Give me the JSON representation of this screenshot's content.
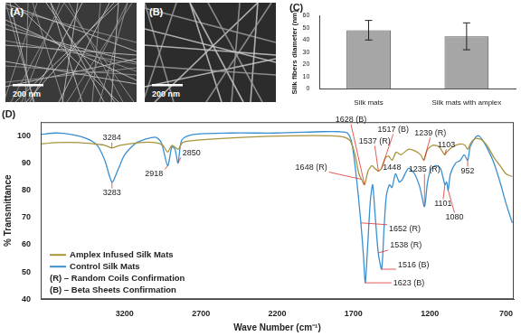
{
  "panels": [
    {
      "label": "(A)",
      "scale_bar": "200 nm"
    },
    {
      "label": "(B)",
      "scale_bar": "200 nm"
    }
  ],
  "chart_data": [
    {
      "type": "bar",
      "title": "(C)",
      "y_label": "Silk fibers diameter (nm)",
      "categories": [
        "Silk mats",
        "Silk mats with amplex"
      ],
      "values": [
        48,
        43
      ],
      "errors": [
        8,
        11
      ],
      "color": "#a6a6a6",
      "ylim": [
        0,
        60
      ],
      "yticks": [
        0,
        10,
        20,
        30,
        40,
        50,
        60
      ],
      "grid": false
    },
    {
      "type": "line",
      "title": "(D)",
      "x_label": "Wave Number (cm⁻¹)",
      "y_label": "% Transmittance",
      "xlim": [
        3750,
        650
      ],
      "xticks": [
        3200,
        2700,
        2200,
        1700,
        1200,
        700
      ],
      "ylim": [
        40,
        105
      ],
      "yticks": [
        40,
        50,
        60,
        70,
        80,
        90,
        100
      ],
      "grid": false,
      "legend": "lower-left",
      "notes": [
        "(R) – Random Coils Confirmation",
        "(B) – Beta Sheets Confirmation"
      ],
      "series": [
        {
          "name": "Amplex Infused Silk Mats",
          "color": "#a8943c",
          "x": [
            3750,
            3650,
            3500,
            3400,
            3330,
            3284,
            3230,
            3100,
            3000,
            2950,
            2918,
            2890,
            2850,
            2820,
            2700,
            2400,
            2100,
            1850,
            1760,
            1720,
            1690,
            1665,
            1648,
            1628,
            1605,
            1580,
            1560,
            1537,
            1517,
            1490,
            1470,
            1448,
            1420,
            1390,
            1340,
            1300,
            1260,
            1239,
            1215,
            1180,
            1140,
            1103,
            1090,
            1080,
            1050,
            1000,
            970,
            952,
            930,
            900,
            860,
            820,
            780,
            740,
            700,
            660
          ],
          "values": [
            97,
            97.5,
            97.5,
            97,
            96.5,
            95.5,
            96.5,
            97.5,
            97.5,
            96.5,
            94,
            96.5,
            95,
            97.5,
            98.5,
            99.5,
            100,
            100,
            99.5,
            98,
            93,
            86,
            84,
            82,
            87,
            89,
            88,
            87,
            88,
            92,
            92.5,
            91,
            94,
            93,
            95,
            94.5,
            93,
            91,
            95,
            96.5,
            96,
            93,
            94,
            94.5,
            96,
            97,
            96.5,
            95,
            97.5,
            99,
            98.5,
            96,
            92,
            89,
            86,
            85
          ]
        },
        {
          "name": "Control Silk Mats",
          "color": "#3a8fd0",
          "x": [
            3750,
            3650,
            3550,
            3450,
            3380,
            3330,
            3283,
            3240,
            3200,
            3120,
            3000,
            2960,
            2918,
            2890,
            2870,
            2850,
            2825,
            2750,
            2500,
            2200,
            1900,
            1800,
            1740,
            1710,
            1680,
            1652,
            1635,
            1623,
            1610,
            1590,
            1575,
            1560,
            1538,
            1516,
            1500,
            1485,
            1465,
            1448,
            1425,
            1400,
            1380,
            1340,
            1300,
            1265,
            1235,
            1215,
            1190,
            1160,
            1130,
            1101,
            1090,
            1080,
            1065,
            1030,
            1000,
            975,
            952,
            935,
            900,
            880,
            850,
            820,
            780,
            740,
            700,
            660
          ],
          "values": [
            100.5,
            101,
            100.5,
            99,
            96.5,
            91,
            83,
            88,
            93,
            97.5,
            99.5,
            97.5,
            89,
            96,
            95,
            90,
            98.5,
            100.5,
            101,
            101,
            101.5,
            101.5,
            101,
            97,
            84,
            68,
            56,
            46,
            57,
            76,
            82,
            72,
            57,
            51,
            66,
            78,
            82,
            81,
            86,
            83,
            84,
            88,
            86,
            81,
            74,
            83,
            88,
            89,
            88,
            82,
            83,
            80,
            86,
            90,
            91,
            93,
            91,
            96,
            99.5,
            100,
            98,
            95,
            90,
            83,
            75,
            68
          ]
        }
      ],
      "annotations": [
        {
          "text": "3284",
          "x": 3284,
          "y": 95.5
        },
        {
          "text": "3283",
          "x": 3283,
          "y": 83
        },
        {
          "text": "2918",
          "x": 2918,
          "y": 89
        },
        {
          "text": "2850",
          "x": 2850,
          "y": 90
        },
        {
          "text": "1628 (B)",
          "x": 1628,
          "y": 82
        },
        {
          "text": "1648 (R)",
          "x": 1648,
          "y": 84
        },
        {
          "text": "1537 (R)",
          "x": 1537,
          "y": 87
        },
        {
          "text": "1517 (B)",
          "x": 1517,
          "y": 88
        },
        {
          "text": "1239 (R)",
          "x": 1239,
          "y": 91
        },
        {
          "text": "1103",
          "x": 1103,
          "y": 93
        },
        {
          "text": "1448",
          "x": 1448,
          "y": 91
        },
        {
          "text": "1235 (R)",
          "x": 1235,
          "y": 74
        },
        {
          "text": "1101",
          "x": 1101,
          "y": 82
        },
        {
          "text": "1080",
          "x": 1080,
          "y": 80
        },
        {
          "text": "952",
          "x": 952,
          "y": 91
        },
        {
          "text": "1652 (R)",
          "x": 1652,
          "y": 68
        },
        {
          "text": "1538 (R)",
          "x": 1538,
          "y": 57
        },
        {
          "text": "1623 (B)",
          "x": 1623,
          "y": 46
        },
        {
          "text": "1516 (B)",
          "x": 1516,
          "y": 51
        }
      ]
    }
  ]
}
